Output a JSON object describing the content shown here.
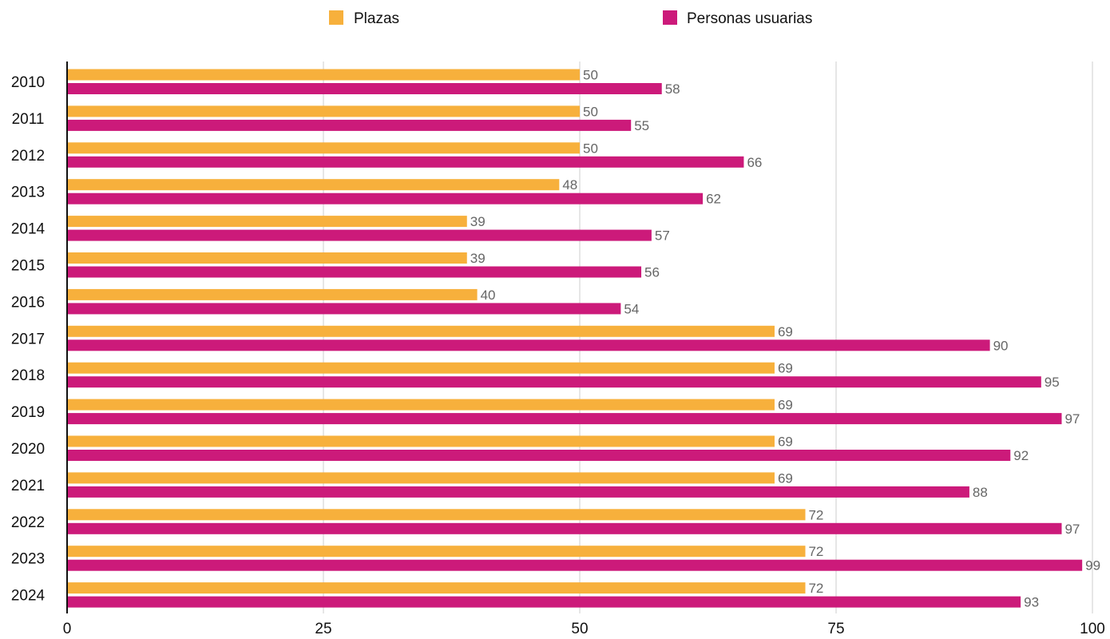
{
  "chart_data": {
    "type": "bar",
    "orientation": "horizontal",
    "title": "",
    "xlabel": "",
    "ylabel": "",
    "xlim": [
      0,
      100
    ],
    "x_ticks": [
      0,
      25,
      50,
      75,
      100
    ],
    "grid": true,
    "legend_position": "top-center",
    "categories": [
      "2010",
      "2011",
      "2012",
      "2013",
      "2014",
      "2015",
      "2016",
      "2017",
      "2018",
      "2019",
      "2020",
      "2021",
      "2022",
      "2023",
      "2024"
    ],
    "series": [
      {
        "name": "Plazas",
        "color": "#F7B03C",
        "values": [
          50,
          50,
          50,
          48,
          39,
          39,
          40,
          69,
          69,
          69,
          69,
          69,
          72,
          72,
          72
        ]
      },
      {
        "name": "Personas usuarias",
        "color": "#CC1A7A",
        "values": [
          58,
          55,
          66,
          62,
          57,
          56,
          54,
          90,
          95,
          97,
          92,
          88,
          97,
          99,
          93
        ]
      }
    ]
  }
}
